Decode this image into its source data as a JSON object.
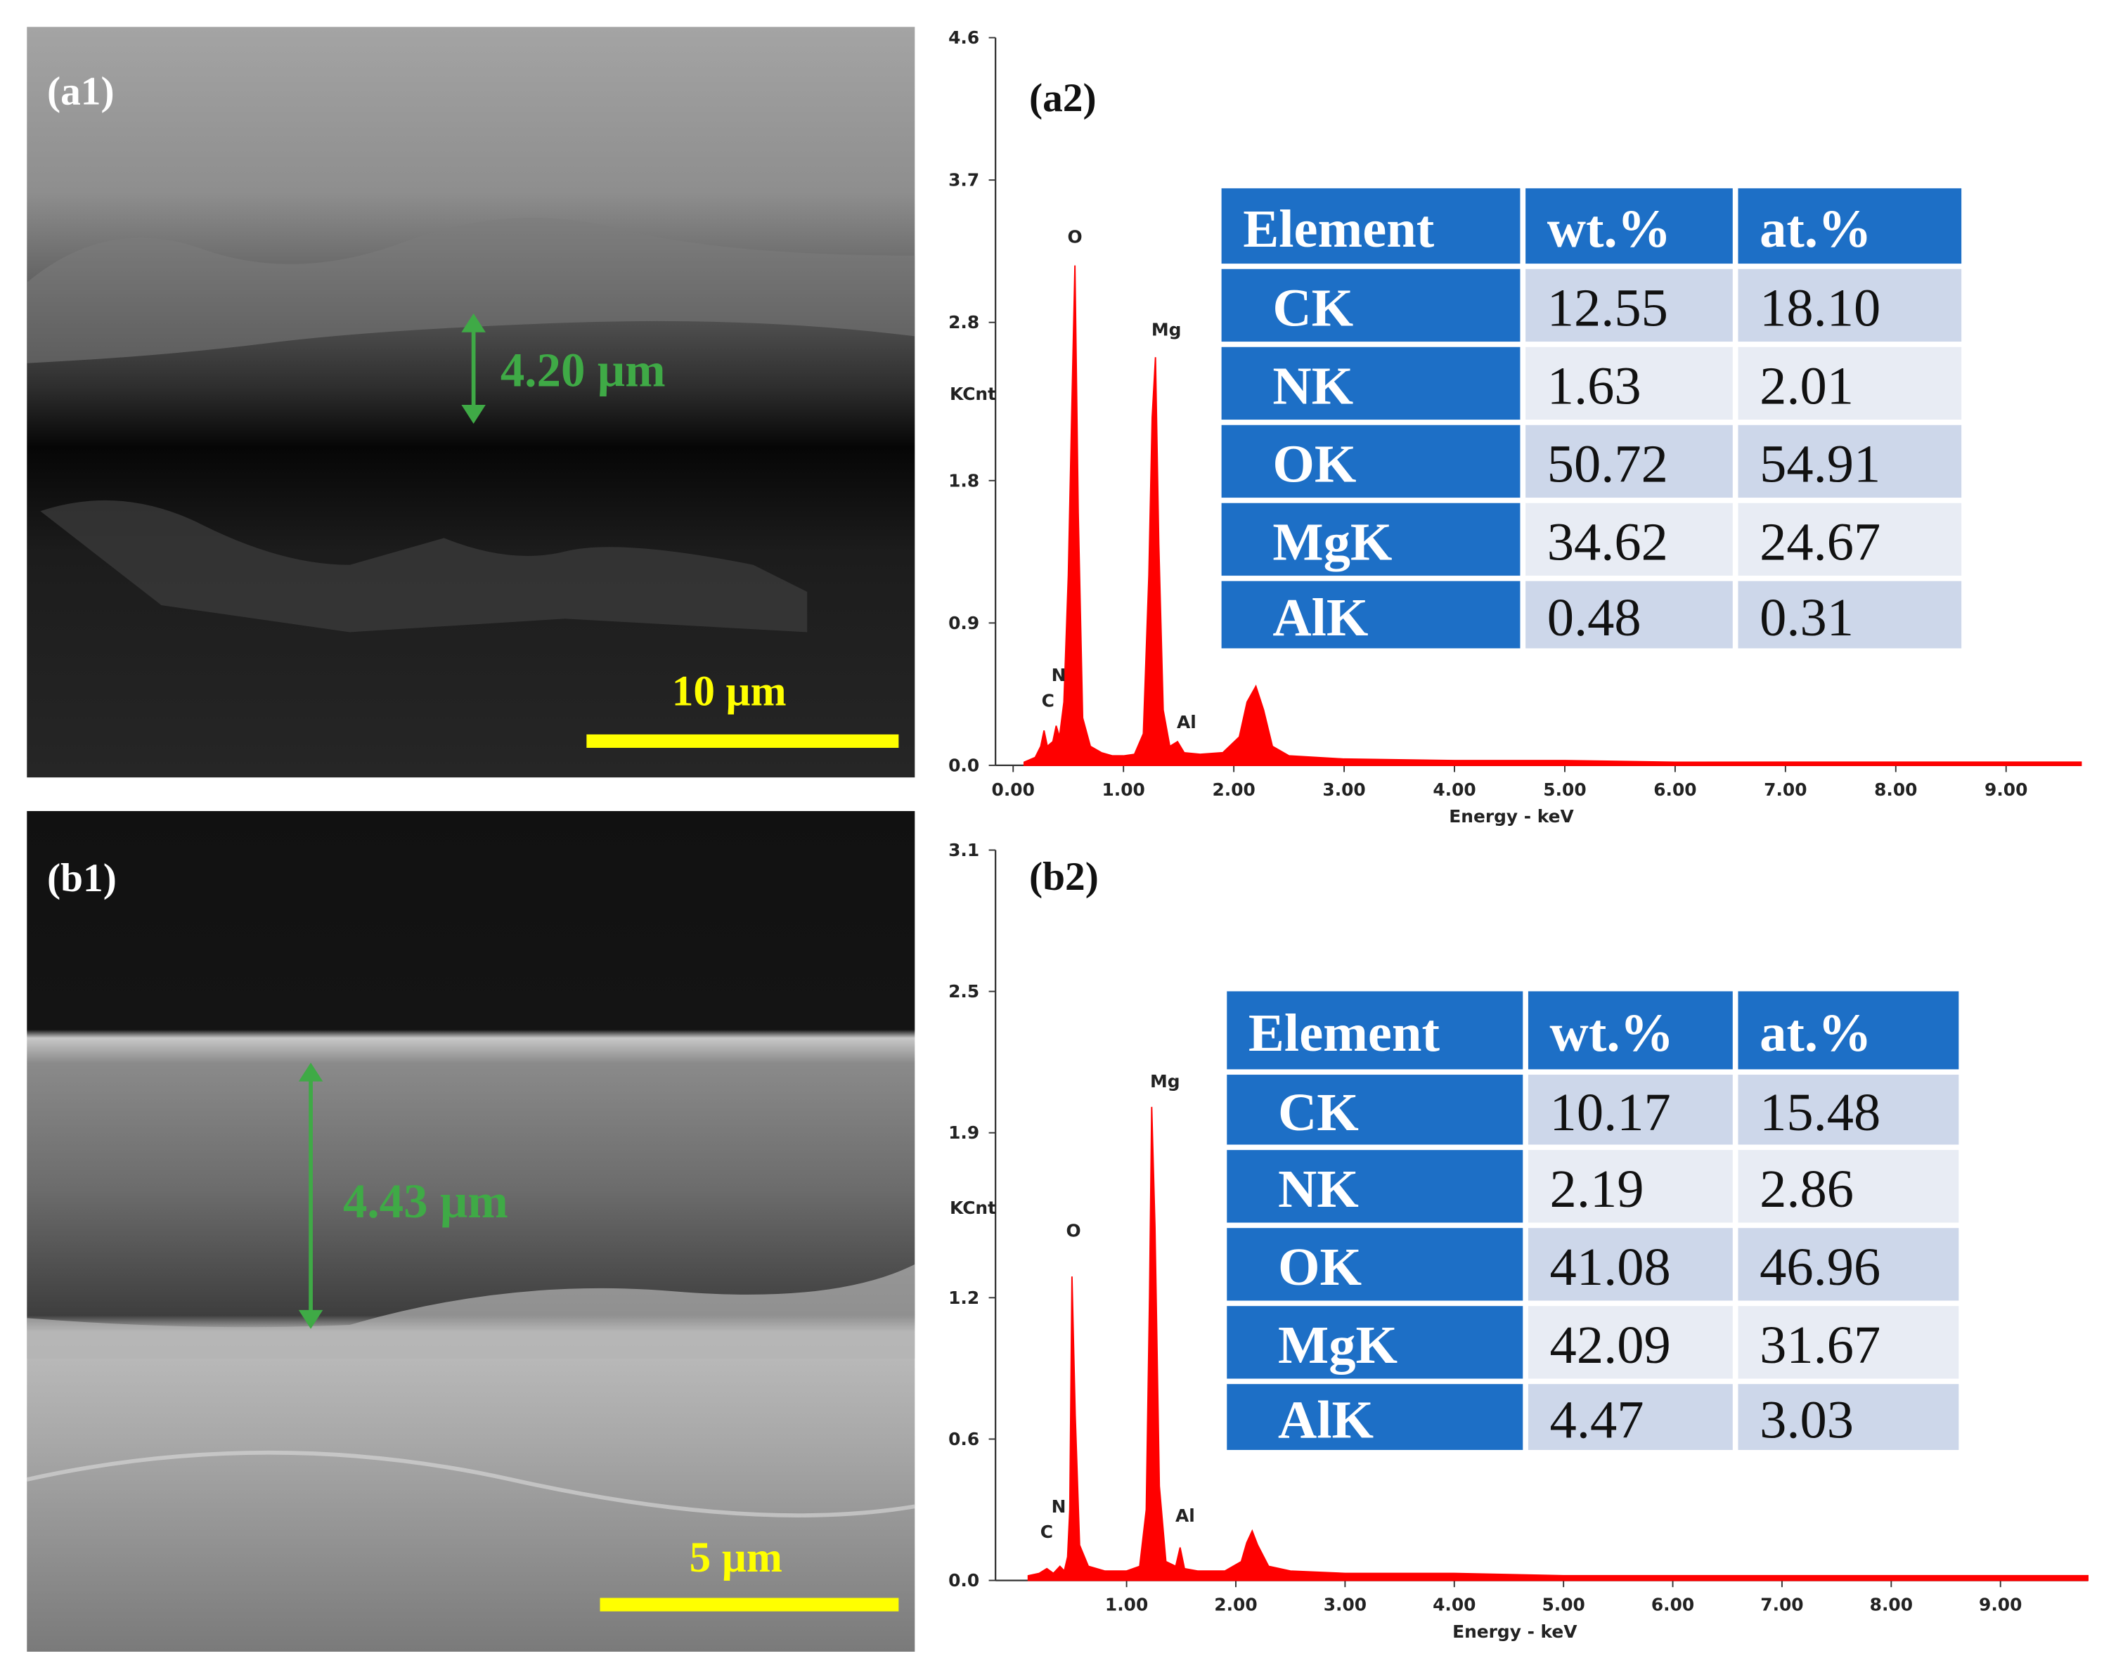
{
  "images": [
    {
      "label": "(a1)",
      "thickness": "4.20 µm",
      "scale_bar": "10 µm"
    },
    {
      "label": "(b1)",
      "thickness": "4.43 µm",
      "scale_bar": "5 µm"
    }
  ],
  "chart_data": [
    {
      "type": "line",
      "title": "(a2)",
      "x_label": "Energy - keV",
      "y_label": "KCnt",
      "xlim": [
        -0.16,
        9.68
      ],
      "ylim": [
        0,
        4.6
      ],
      "xticks": [
        {
          "value": 0,
          "label": "0.00"
        },
        {
          "value": 1,
          "label": "1.00"
        },
        {
          "value": 2,
          "label": "2.00"
        },
        {
          "value": 3,
          "label": "3.00"
        },
        {
          "value": 4,
          "label": "4.00"
        },
        {
          "value": 5,
          "label": "5.00"
        },
        {
          "value": 6,
          "label": "6.00"
        },
        {
          "value": 7,
          "label": "7.00"
        },
        {
          "value": 8,
          "label": "8.00"
        },
        {
          "value": 9,
          "label": "9.00"
        }
      ],
      "yticks": [
        {
          "value": 0,
          "label": "0.0"
        },
        0.9,
        1.8,
        2.8,
        3.7,
        4.6
      ],
      "x": [
        0.1,
        0.2,
        0.25,
        0.28,
        0.31,
        0.36,
        0.39,
        0.42,
        0.46,
        0.5,
        0.53,
        0.56,
        0.59,
        0.63,
        0.7,
        0.8,
        0.9,
        1.0,
        1.1,
        1.18,
        1.23,
        1.26,
        1.29,
        1.32,
        1.36,
        1.42,
        1.49,
        1.55,
        1.7,
        1.9,
        2.05,
        2.12,
        2.2,
        2.27,
        2.35,
        2.5,
        3.0,
        4.0,
        5.0,
        6.0,
        7.0,
        8.0,
        9.0,
        9.68
      ],
      "series": [
        {
          "color": "#ff0000",
          "values": [
            0.02,
            0.05,
            0.12,
            0.22,
            0.12,
            0.15,
            0.25,
            0.18,
            0.4,
            1.2,
            2.2,
            3.16,
            1.6,
            0.3,
            0.12,
            0.08,
            0.06,
            0.06,
            0.07,
            0.2,
            1.2,
            2.2,
            2.58,
            1.4,
            0.35,
            0.12,
            0.15,
            0.08,
            0.07,
            0.08,
            0.18,
            0.4,
            0.5,
            0.35,
            0.12,
            0.06,
            0.04,
            0.03,
            0.03,
            0.02,
            0.02,
            0.02,
            0.02,
            0.02
          ]
        }
      ],
      "annotations": [
        "C",
        "N",
        "O",
        "Mg",
        "Al"
      ],
      "table": {
        "header": [
          "Element",
          "wt.%",
          "at.%"
        ],
        "rows": [
          [
            "CK",
            "12.55",
            "18.10"
          ],
          [
            "NK",
            "1.63",
            "2.01"
          ],
          [
            "OK",
            "50.72",
            "54.91"
          ],
          [
            "MgK",
            "34.62",
            "24.67"
          ],
          [
            "AlK",
            "0.48",
            "0.31"
          ]
        ]
      }
    },
    {
      "type": "line",
      "title": "(b2)",
      "x_label": "Energy - keV",
      "y_label": "KCnt",
      "xlim": [
        -0.2,
        9.8
      ],
      "ylim": [
        0,
        3.1
      ],
      "xticks": [
        {
          "value": 1,
          "label": "1.00"
        },
        {
          "value": 2,
          "label": "2.00"
        },
        {
          "value": 3,
          "label": "3.00"
        },
        {
          "value": 4,
          "label": "4.00"
        },
        {
          "value": 5,
          "label": "5.00"
        },
        {
          "value": 6,
          "label": "6.00"
        },
        {
          "value": 7,
          "label": "7.00"
        },
        {
          "value": 8,
          "label": "8.00"
        },
        {
          "value": 9,
          "label": "9.00"
        }
      ],
      "yticks": [
        {
          "value": 0,
          "label": "0.0"
        },
        0.6,
        1.2,
        1.9,
        2.5,
        3.1
      ],
      "x": [
        0.1,
        0.2,
        0.27,
        0.33,
        0.39,
        0.43,
        0.46,
        0.48,
        0.5,
        0.53,
        0.57,
        0.65,
        0.8,
        1.0,
        1.12,
        1.18,
        1.21,
        1.23,
        1.26,
        1.3,
        1.36,
        1.45,
        1.49,
        1.53,
        1.65,
        1.9,
        2.05,
        2.1,
        2.15,
        2.2,
        2.3,
        2.5,
        3.0,
        4.0,
        5.0,
        6.0,
        7.0,
        8.0,
        9.0,
        9.8
      ],
      "series": [
        {
          "color": "#ff0000",
          "values": [
            0.02,
            0.03,
            0.05,
            0.03,
            0.06,
            0.04,
            0.1,
            0.3,
            1.29,
            0.7,
            0.15,
            0.06,
            0.04,
            0.04,
            0.06,
            0.3,
            1.2,
            2.01,
            1.5,
            0.4,
            0.08,
            0.06,
            0.14,
            0.05,
            0.04,
            0.04,
            0.08,
            0.16,
            0.21,
            0.15,
            0.06,
            0.04,
            0.03,
            0.03,
            0.02,
            0.02,
            0.02,
            0.02,
            0.02,
            0.02
          ]
        }
      ],
      "annotations": [
        "C",
        "N",
        "O",
        "Mg",
        "Al"
      ],
      "table": {
        "header": [
          "Element",
          "wt.%",
          "at.%"
        ],
        "rows": [
          [
            "CK",
            "10.17",
            "15.48"
          ],
          [
            "NK",
            "2.19",
            "2.86"
          ],
          [
            "OK",
            "41.08",
            "46.96"
          ],
          [
            "MgK",
            "42.09",
            "31.67"
          ],
          [
            "AlK",
            "4.47",
            "3.03"
          ]
        ]
      }
    }
  ]
}
